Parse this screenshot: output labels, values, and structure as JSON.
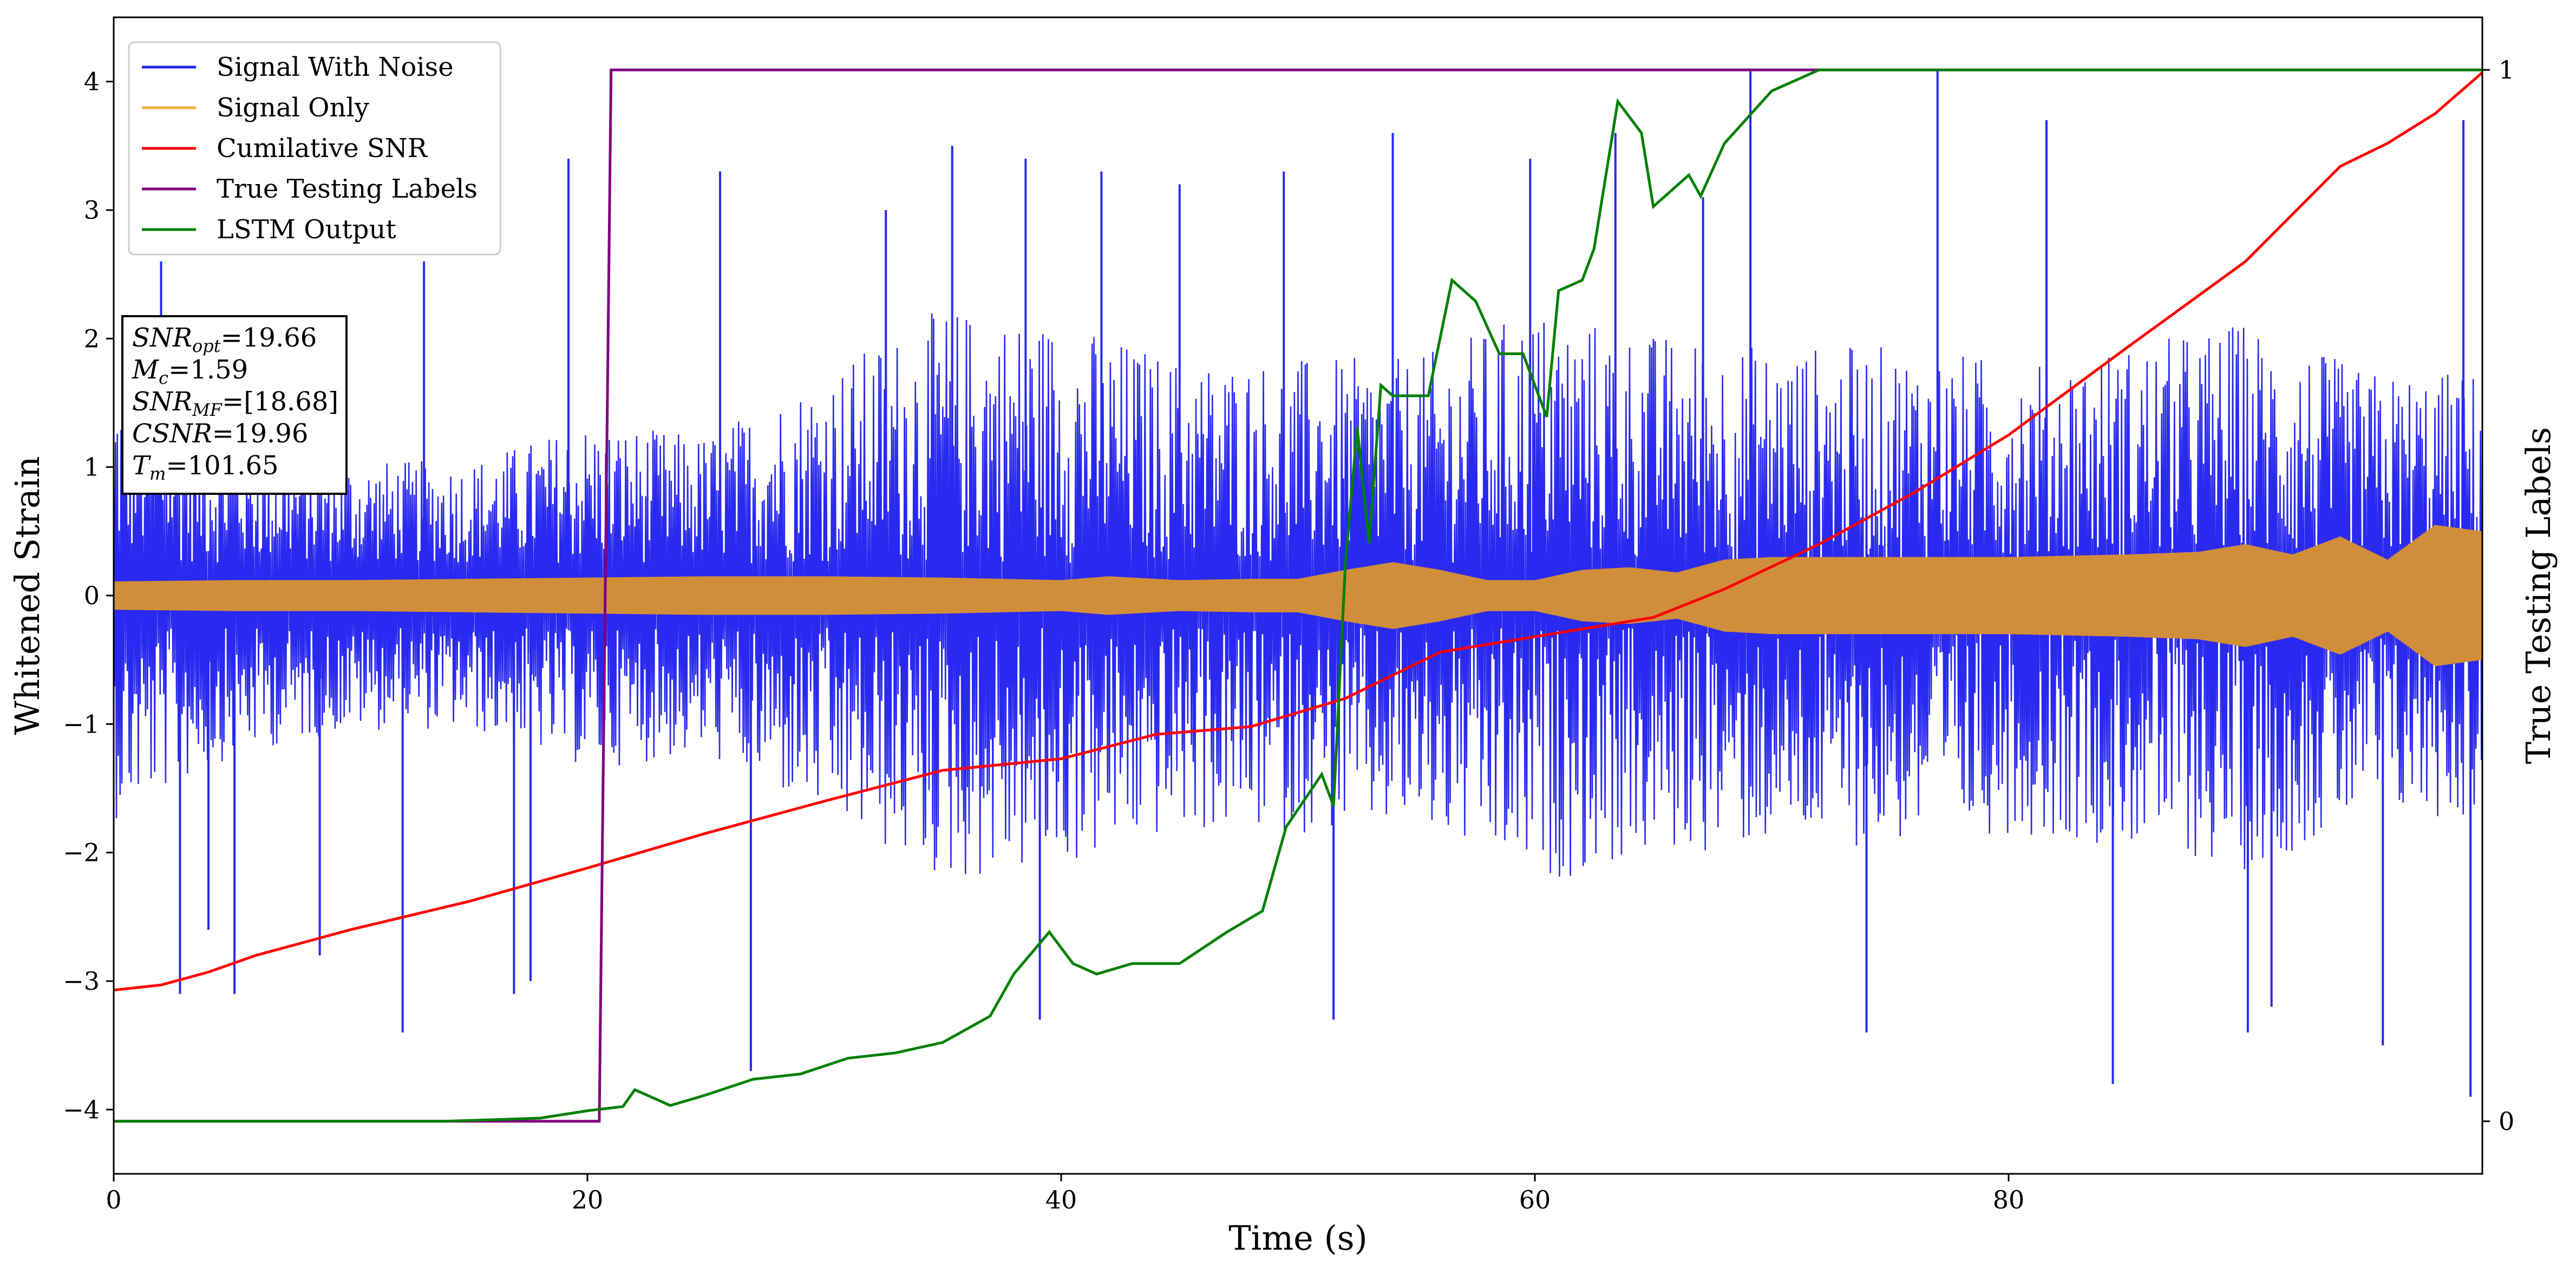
{
  "chart_data": {
    "type": "line",
    "xlabel": "Time (s)",
    "ylabel": "Whitened Strain",
    "y2label": "True Testing Labels",
    "xlim": [
      0,
      100
    ],
    "ylim": [
      -4.5,
      4.5
    ],
    "y2lim": [
      -0.05,
      1.05
    ],
    "x_ticks": [
      0,
      20,
      40,
      60,
      80
    ],
    "y_ticks": [
      -4,
      -3,
      -2,
      -1,
      0,
      1,
      2,
      3,
      4
    ],
    "y2_ticks": [
      0,
      1
    ],
    "legend_position": "upper-left",
    "annotation": {
      "lines": [
        {
          "name": "SNR",
          "sub": "opt",
          "value": "=19.66"
        },
        {
          "name": "M",
          "sub": "c",
          "value": "=1.59"
        },
        {
          "name": "SNR",
          "sub": "MF",
          "value": "=[18.68]"
        },
        {
          "name": "CSNR",
          "sub": "",
          "value": "=19.96"
        },
        {
          "name": "T",
          "sub": "m",
          "value": "=101.65"
        }
      ]
    },
    "series": [
      {
        "name": "Signal With Noise",
        "color": "#2929f0",
        "axis": "left",
        "style": "noise-band",
        "points": [
          [
            0.0,
            1.5
          ],
          [
            5.0,
            1.0
          ],
          [
            10.0,
            0.8
          ],
          [
            15.0,
            0.8
          ],
          [
            20.0,
            1.1
          ],
          [
            25.0,
            1.0
          ],
          [
            30.0,
            1.5
          ],
          [
            35.0,
            2.0
          ],
          [
            40.0,
            1.9
          ],
          [
            45.0,
            1.6
          ],
          [
            50.0,
            1.6
          ],
          [
            55.0,
            1.6
          ],
          [
            60.0,
            2.0
          ],
          [
            65.0,
            1.8
          ],
          [
            70.0,
            1.7
          ],
          [
            75.0,
            1.7
          ],
          [
            80.0,
            1.6
          ],
          [
            85.0,
            1.7
          ],
          [
            90.0,
            1.9
          ],
          [
            95.0,
            1.5
          ],
          [
            100.0,
            1.5
          ]
        ],
        "spikes": [
          [
            2,
            2.6
          ],
          [
            2.8,
            -3.1
          ],
          [
            4,
            -2.6
          ],
          [
            5.1,
            -3.1
          ],
          [
            8.7,
            -2.8
          ],
          [
            12.2,
            -3.4
          ],
          [
            13.1,
            2.6
          ],
          [
            16.9,
            -3.1
          ],
          [
            17.6,
            -3.0
          ],
          [
            19.2,
            3.4
          ],
          [
            25.6,
            3.3
          ],
          [
            26.9,
            -3.7
          ],
          [
            32.6,
            3.0
          ],
          [
            35.4,
            3.5
          ],
          [
            38.5,
            3.4
          ],
          [
            39.1,
            -3.3
          ],
          [
            41.7,
            3.3
          ],
          [
            45.0,
            3.2
          ],
          [
            49.4,
            3.3
          ],
          [
            51.5,
            -3.3
          ],
          [
            54.0,
            3.6
          ],
          [
            59.8,
            3.4
          ],
          [
            63.4,
            3.6
          ],
          [
            67.1,
            3.1
          ],
          [
            69.1,
            4.1
          ],
          [
            74.0,
            -3.4
          ],
          [
            77.0,
            4.1
          ],
          [
            81.6,
            3.7
          ],
          [
            84.4,
            -3.8
          ],
          [
            90.1,
            -3.4
          ],
          [
            91.1,
            -3.2
          ],
          [
            95.8,
            -3.5
          ],
          [
            99.2,
            3.7
          ],
          [
            99.5,
            -3.9
          ]
        ]
      },
      {
        "name": "Signal Only",
        "color": "#f5b041",
        "fill_color": "#d18e3a",
        "axis": "left",
        "style": "envelope",
        "points": [
          [
            0.0,
            0.11
          ],
          [
            5.0,
            0.12
          ],
          [
            10.0,
            0.12
          ],
          [
            15.0,
            0.13
          ],
          [
            20.0,
            0.14
          ],
          [
            25.0,
            0.15
          ],
          [
            30.0,
            0.15
          ],
          [
            35.0,
            0.14
          ],
          [
            40.0,
            0.12
          ],
          [
            42.0,
            0.15
          ],
          [
            44.0,
            0.13
          ],
          [
            45.0,
            0.12
          ],
          [
            48.0,
            0.13
          ],
          [
            50.0,
            0.13
          ],
          [
            52.0,
            0.2
          ],
          [
            54.0,
            0.26
          ],
          [
            56.0,
            0.2
          ],
          [
            58.0,
            0.12
          ],
          [
            60.0,
            0.12
          ],
          [
            62.0,
            0.2
          ],
          [
            64.0,
            0.22
          ],
          [
            66.0,
            0.18
          ],
          [
            68.0,
            0.28
          ],
          [
            70.0,
            0.3
          ],
          [
            75.0,
            0.3
          ],
          [
            80.0,
            0.3
          ],
          [
            85.0,
            0.32
          ],
          [
            88.0,
            0.34
          ],
          [
            90.0,
            0.4
          ],
          [
            92.0,
            0.32
          ],
          [
            94.0,
            0.46
          ],
          [
            96.0,
            0.28
          ],
          [
            98.0,
            0.55
          ],
          [
            100.0,
            0.5
          ]
        ]
      },
      {
        "name": "Cumilative SNR",
        "color": "#ff0000",
        "axis": "left",
        "points": [
          [
            0.0,
            -3.07
          ],
          [
            2.0,
            -3.03
          ],
          [
            4.0,
            -2.93
          ],
          [
            6.0,
            -2.8
          ],
          [
            10.0,
            -2.6
          ],
          [
            15.0,
            -2.38
          ],
          [
            20.0,
            -2.12
          ],
          [
            25.0,
            -1.85
          ],
          [
            30.0,
            -1.6
          ],
          [
            35.0,
            -1.36
          ],
          [
            40.0,
            -1.27
          ],
          [
            44.0,
            -1.08
          ],
          [
            48.0,
            -1.02
          ],
          [
            52.0,
            -0.8
          ],
          [
            56.0,
            -0.44
          ],
          [
            60.0,
            -0.32
          ],
          [
            65.0,
            -0.17
          ],
          [
            68.0,
            0.05
          ],
          [
            72.0,
            0.4
          ],
          [
            76.0,
            0.8
          ],
          [
            80.0,
            1.25
          ],
          [
            85.0,
            1.93
          ],
          [
            90.0,
            2.6
          ],
          [
            94.0,
            3.34
          ],
          [
            96.0,
            3.52
          ],
          [
            98.0,
            3.75
          ],
          [
            100.0,
            4.07
          ]
        ]
      },
      {
        "name": "True Testing Labels",
        "color": "#800080",
        "axis": "right",
        "points": [
          [
            0.0,
            0.0
          ],
          [
            20.5,
            0.0
          ],
          [
            21.0,
            1.0
          ],
          [
            100.0,
            1.0
          ]
        ]
      },
      {
        "name": "LSTM Output",
        "color": "#008000",
        "axis": "right",
        "points": [
          [
            0.0,
            0.0
          ],
          [
            14.0,
            0.0
          ],
          [
            18.0,
            0.003
          ],
          [
            20.0,
            0.01
          ],
          [
            21.5,
            0.014
          ],
          [
            22.0,
            0.03
          ],
          [
            23.5,
            0.015
          ],
          [
            25.0,
            0.025
          ],
          [
            27.0,
            0.04
          ],
          [
            29.0,
            0.045
          ],
          [
            31.0,
            0.06
          ],
          [
            33.0,
            0.065
          ],
          [
            35.0,
            0.075
          ],
          [
            37.0,
            0.1
          ],
          [
            38.0,
            0.14
          ],
          [
            39.5,
            0.18
          ],
          [
            40.5,
            0.15
          ],
          [
            41.5,
            0.14
          ],
          [
            43.0,
            0.15
          ],
          [
            45.0,
            0.15
          ],
          [
            47.0,
            0.18
          ],
          [
            48.5,
            0.2
          ],
          [
            49.5,
            0.28
          ],
          [
            51.0,
            0.33
          ],
          [
            51.5,
            0.3
          ],
          [
            52.0,
            0.53
          ],
          [
            52.5,
            0.66
          ],
          [
            53.0,
            0.55
          ],
          [
            53.5,
            0.7
          ],
          [
            54.0,
            0.69
          ],
          [
            55.5,
            0.69
          ],
          [
            56.5,
            0.8
          ],
          [
            57.5,
            0.78
          ],
          [
            58.5,
            0.73
          ],
          [
            59.5,
            0.73
          ],
          [
            60.5,
            0.67
          ],
          [
            61.0,
            0.79
          ],
          [
            62.0,
            0.8
          ],
          [
            62.5,
            0.83
          ],
          [
            63.5,
            0.97
          ],
          [
            64.5,
            0.94
          ],
          [
            65.0,
            0.87
          ],
          [
            66.5,
            0.9
          ],
          [
            67.0,
            0.88
          ],
          [
            68.0,
            0.93
          ],
          [
            70.0,
            0.98
          ],
          [
            72.0,
            1.0
          ],
          [
            100.0,
            1.0
          ]
        ]
      }
    ]
  }
}
